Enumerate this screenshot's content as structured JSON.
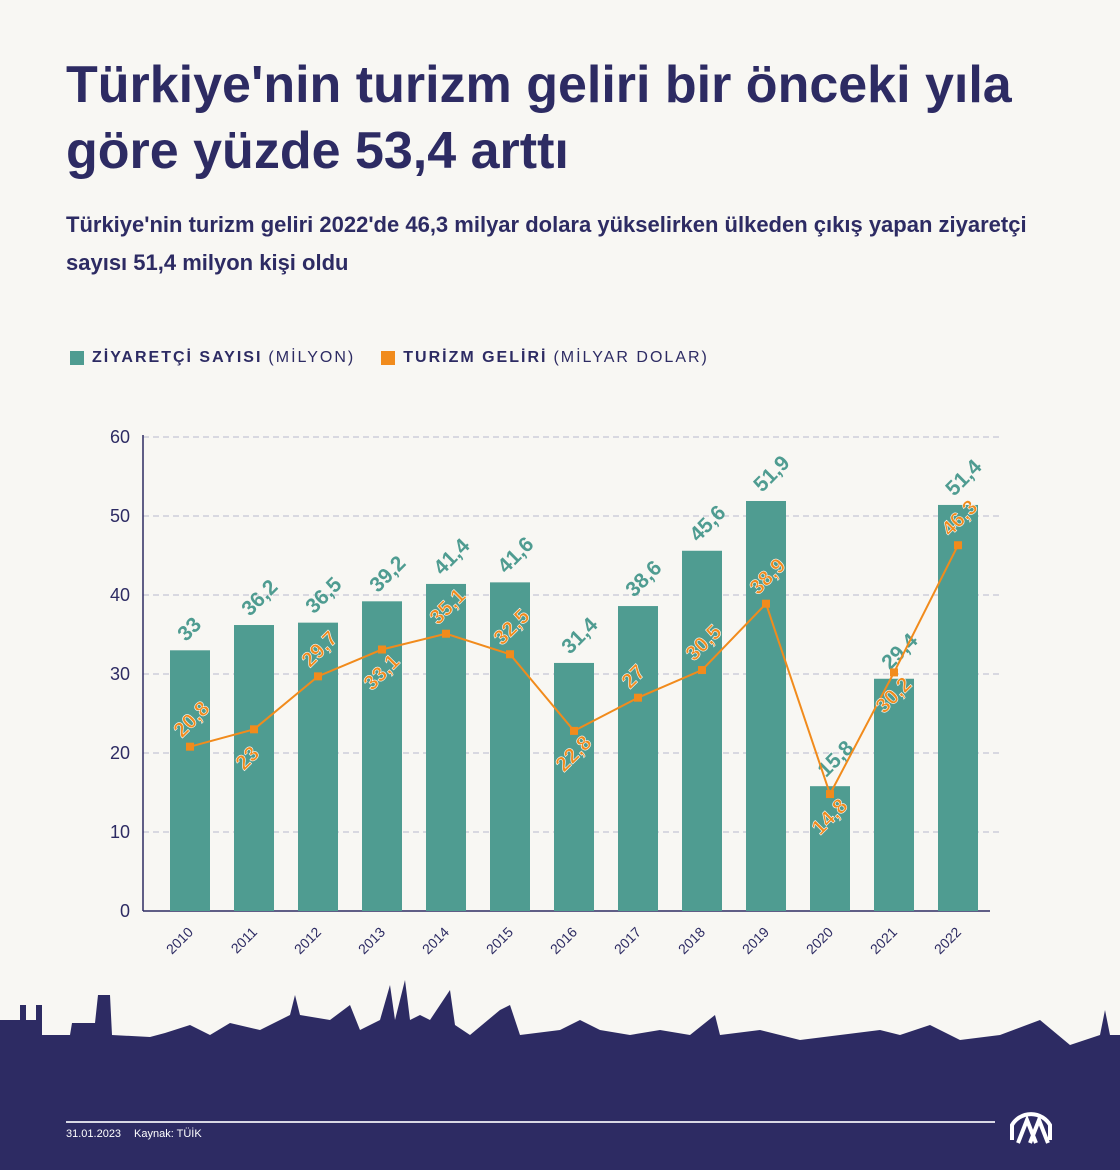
{
  "title": "Türkiye'nin turizm geliri bir önceki yıla göre yüzde 53,4 arttı",
  "subtitle": "Türkiye'nin turizm geliri 2022'de 46,3 milyar dolara yükselirken ülkeden çıkış yapan ziyaretçi sayısı 51,4 milyon kişi oldu",
  "footer": {
    "date": "31.01.2023",
    "source": "Kaynak: TÜİK",
    "logo": "AA"
  },
  "colors": {
    "bar": "#4f9c91",
    "line": "#f18b1c",
    "navy": "#2d2b63"
  },
  "chart_data": {
    "type": "bar+line",
    "categories": [
      "2010",
      "2011",
      "2012",
      "2013",
      "2014",
      "2015",
      "2016",
      "2017",
      "2018",
      "2019",
      "2020",
      "2021",
      "2022"
    ],
    "series": [
      {
        "name": "ZİYARETÇİ SAYISI",
        "unit": "(MİLYON)",
        "type": "bar",
        "values": [
          33,
          36.2,
          36.5,
          39.2,
          41.4,
          41.6,
          31.4,
          38.6,
          45.6,
          51.9,
          15.8,
          29.4,
          51.4
        ],
        "labels": [
          "33",
          "36,2",
          "36,5",
          "39,2",
          "41,4",
          "41,6",
          "31,4",
          "38,6",
          "45,6",
          "51,9",
          "15,8",
          "29,4",
          "51,4"
        ]
      },
      {
        "name": "TURİZM GELİRİ",
        "unit": "(MİLYAR DOLAR)",
        "type": "line",
        "values": [
          20.8,
          23,
          29.7,
          33.1,
          35.1,
          32.5,
          22.8,
          27,
          30.5,
          38.9,
          14.8,
          30.2,
          46.3
        ],
        "labels": [
          "20,8",
          "23",
          "29,7",
          "33,1",
          "35,1",
          "32,5",
          "22,8",
          "27",
          "30,5",
          "38,9",
          "14,8",
          "30,2",
          "46,3"
        ]
      }
    ],
    "yticks": [
      "0",
      "10",
      "20",
      "30",
      "40",
      "50",
      "60"
    ],
    "ylim": [
      0,
      60
    ],
    "grid": true,
    "legend": "top-left"
  }
}
